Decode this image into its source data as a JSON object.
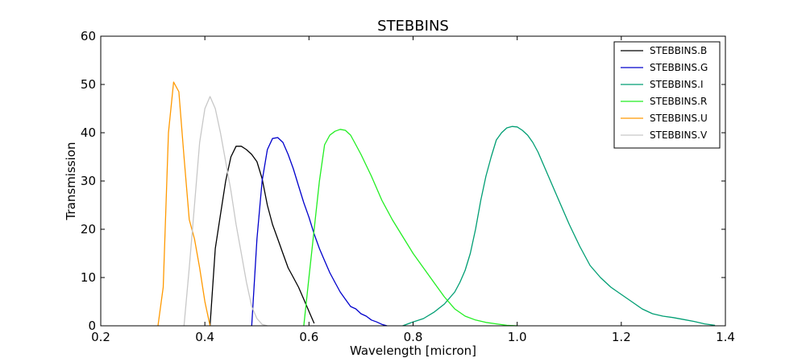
{
  "chart_data": {
    "type": "line",
    "title": "STEBBINS",
    "xlabel": "Wavelength [micron]",
    "ylabel": "Transmission",
    "xlim": [
      0.2,
      1.4
    ],
    "ylim": [
      0,
      60
    ],
    "xticks": [
      "0.2",
      "0.4",
      "0.6",
      "0.8",
      "1.0",
      "1.2",
      "1.4"
    ],
    "yticks": [
      "0",
      "10",
      "20",
      "30",
      "40",
      "50",
      "60"
    ],
    "grid": false,
    "legend_position": "top-right",
    "series": [
      {
        "name": "STEBBINS.B",
        "color": "#000000",
        "x": [
          0.41,
          0.42,
          0.43,
          0.44,
          0.45,
          0.46,
          0.47,
          0.48,
          0.49,
          0.5,
          0.51,
          0.52,
          0.53,
          0.54,
          0.55,
          0.56,
          0.57,
          0.58,
          0.59,
          0.6,
          0.61
        ],
        "y": [
          0,
          16,
          23,
          30,
          35,
          37.2,
          37.2,
          36.5,
          35.5,
          34,
          30.5,
          25,
          21,
          18,
          15,
          12,
          10,
          8,
          5.5,
          3,
          0.5
        ]
      },
      {
        "name": "STEBBINS.G",
        "color": "#0000cc",
        "x": [
          0.49,
          0.5,
          0.51,
          0.52,
          0.53,
          0.54,
          0.55,
          0.56,
          0.57,
          0.58,
          0.59,
          0.6,
          0.61,
          0.62,
          0.63,
          0.64,
          0.65,
          0.66,
          0.67,
          0.68,
          0.69,
          0.7,
          0.71,
          0.72,
          0.73,
          0.74,
          0.75
        ],
        "y": [
          0,
          18,
          30,
          36.5,
          38.8,
          39,
          38,
          35.5,
          32.5,
          29,
          25.5,
          22.5,
          19,
          16,
          13.5,
          11,
          9,
          7,
          5.5,
          4,
          3.5,
          2.5,
          2,
          1.2,
          0.8,
          0.3,
          0
        ]
      },
      {
        "name": "STEBBINS.I",
        "color": "#009e73",
        "x": [
          0.78,
          0.8,
          0.82,
          0.84,
          0.86,
          0.88,
          0.89,
          0.9,
          0.91,
          0.92,
          0.93,
          0.94,
          0.95,
          0.96,
          0.97,
          0.98,
          0.99,
          1.0,
          1.01,
          1.02,
          1.03,
          1.04,
          1.06,
          1.08,
          1.1,
          1.12,
          1.14,
          1.16,
          1.18,
          1.2,
          1.22,
          1.24,
          1.26,
          1.28,
          1.3,
          1.32,
          1.34,
          1.36,
          1.38
        ],
        "y": [
          0,
          0.8,
          1.5,
          2.8,
          4.5,
          7,
          9,
          11.5,
          15,
          20,
          26,
          31,
          35,
          38.5,
          40,
          41,
          41.3,
          41.2,
          40.5,
          39.5,
          38,
          36,
          31,
          26,
          21,
          16.5,
          12.5,
          10,
          8,
          6.5,
          5,
          3.5,
          2.5,
          2,
          1.7,
          1.3,
          0.9,
          0.4,
          0.1
        ]
      },
      {
        "name": "STEBBINS.R",
        "color": "#22ee22",
        "x": [
          0.59,
          0.6,
          0.61,
          0.62,
          0.63,
          0.64,
          0.65,
          0.66,
          0.67,
          0.68,
          0.69,
          0.7,
          0.72,
          0.74,
          0.76,
          0.78,
          0.8,
          0.82,
          0.84,
          0.86,
          0.88,
          0.9,
          0.92,
          0.94,
          0.96,
          0.98,
          1.0
        ],
        "y": [
          0,
          10,
          20,
          30,
          37.5,
          39.5,
          40.3,
          40.7,
          40.5,
          39.5,
          37.5,
          35.5,
          31,
          26,
          22,
          18.5,
          15,
          12,
          9,
          6,
          3.5,
          2,
          1.2,
          0.7,
          0.4,
          0.1,
          0
        ]
      },
      {
        "name": "STEBBINS.U",
        "color": "#ff9900",
        "x": [
          0.31,
          0.32,
          0.33,
          0.34,
          0.35,
          0.36,
          0.37,
          0.38,
          0.39,
          0.4,
          0.41
        ],
        "y": [
          0,
          8,
          40,
          50.5,
          48.5,
          35,
          22,
          18,
          12,
          5,
          0
        ]
      },
      {
        "name": "STEBBINS.V",
        "color": "#c8c8c8",
        "x": [
          0.36,
          0.37,
          0.38,
          0.39,
          0.4,
          0.41,
          0.42,
          0.43,
          0.44,
          0.45,
          0.46,
          0.47,
          0.48,
          0.49,
          0.5,
          0.51,
          0.52
        ],
        "y": [
          0,
          12,
          25,
          38,
          45,
          47.5,
          45,
          40,
          34,
          28,
          21,
          15,
          9,
          4,
          1.5,
          0.3,
          0
        ]
      }
    ]
  }
}
